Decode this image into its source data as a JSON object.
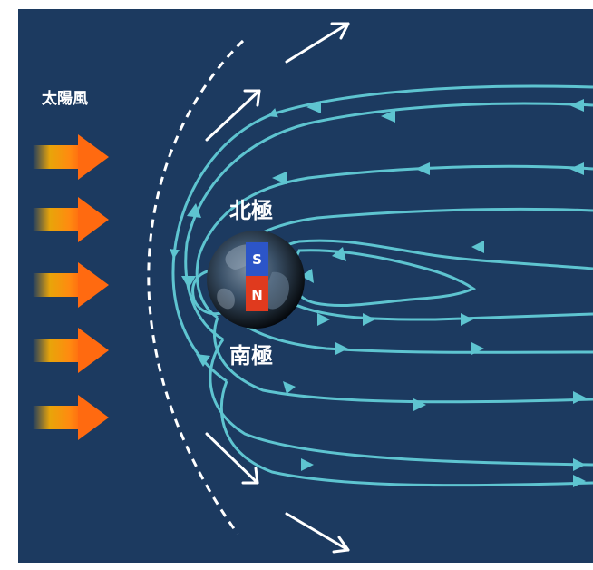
{
  "labels": {
    "solar_wind": "太陽風",
    "north_pole": "北極",
    "south_pole": "南極",
    "magnet_s": "S",
    "magnet_n": "N"
  },
  "colors": {
    "background": "#1c3a60",
    "field_lines": "#5ec4d0",
    "bow_shock": "#ffffff",
    "flow_arrows": "#ffffff",
    "wind_arrow_head": "#ff7a12",
    "wind_arrow_tail": "#ffb000",
    "magnet_s": "#2c55c8",
    "magnet_n": "#e03a1e"
  },
  "icons": [
    "solar-wind-arrow",
    "flow-arrow",
    "earth-globe",
    "bar-magnet"
  ]
}
